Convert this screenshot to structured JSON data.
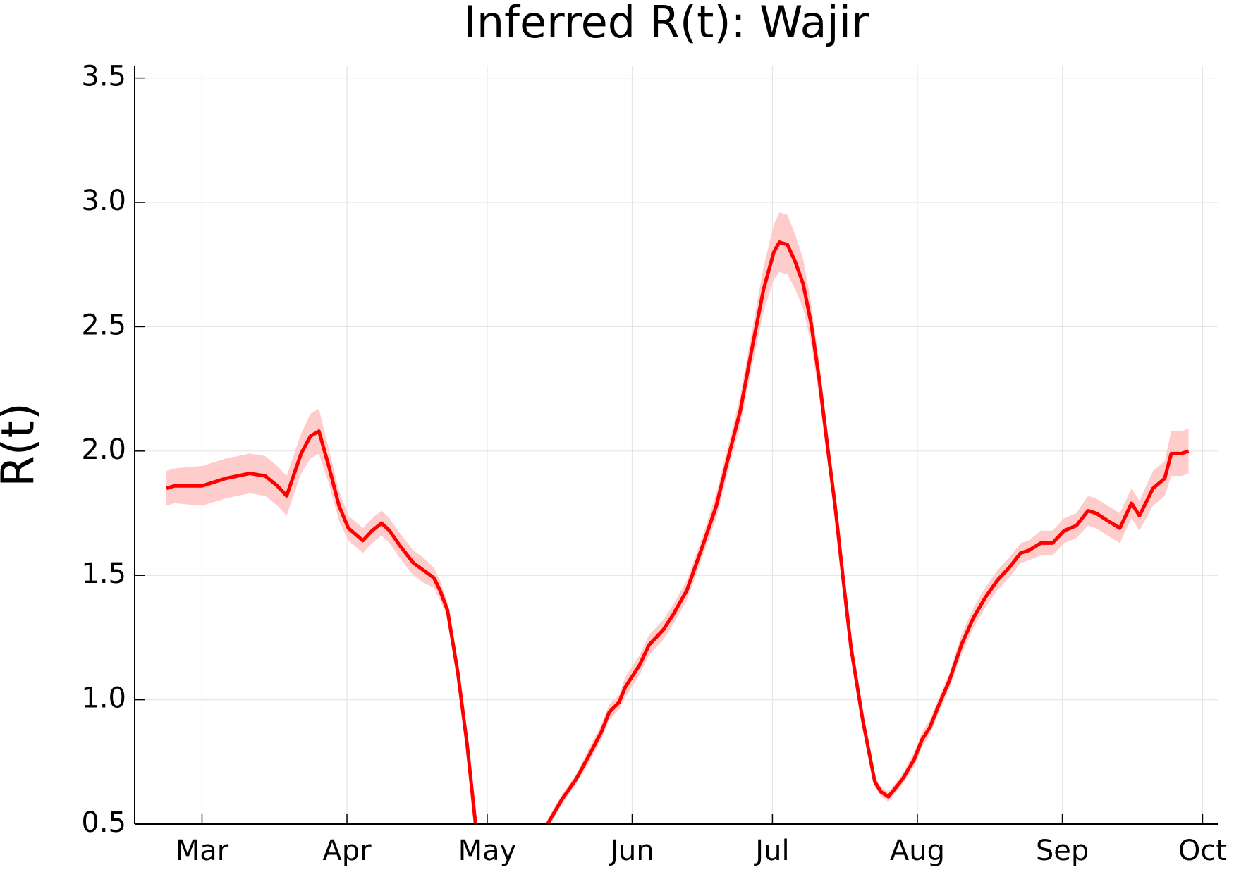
{
  "chart_data": {
    "type": "line",
    "title": "Inferred R(t): Wajir",
    "y_label": "R(t)",
    "x": [
      -7.6,
      -5.9,
      0,
      5.1,
      10.2,
      13.5,
      16.1,
      18.1,
      21.2,
      23.2,
      25.0,
      27.1,
      29.3,
      31.3,
      34.4,
      36.4,
      38.4,
      40.1,
      42.3,
      45.2,
      47.4,
      49.6,
      50.9,
      52.5,
      54.7,
      56.7,
      58.5,
      66,
      73.9,
      77.0,
      80.0,
      82.9,
      85.4,
      87.1,
      89.2,
      90.5,
      93.6,
      95.6,
      98.6,
      100.7,
      103.7,
      107.1,
      110.0,
      112.5,
      115.1,
      117.6,
      120.1,
      122.3,
      123.5,
      125.2,
      126.9,
      128.6,
      130.3,
      132.0,
      133.7,
      135.4,
      137.1,
      138.8,
      141.3,
      143.9,
      145.2,
      146.8,
      148.1,
      149.8,
      152.3,
      154.0,
      155.7,
      157.4,
      159.9,
      162.4,
      165.0,
      167.5,
      170.1,
      172.6,
      175.1,
      176.8,
      179.4,
      181.9,
      184.4,
      187.0,
      189.5,
      191.2,
      193.7,
      196.3,
      198.8,
      200.5,
      203.4,
      205.9,
      207.3,
      209.5,
      211.0
    ],
    "values": [
      1.85,
      1.86,
      1.86,
      1.89,
      1.91,
      1.9,
      1.86,
      1.82,
      1.99,
      2.06,
      2.08,
      1.94,
      1.78,
      1.69,
      1.64,
      1.68,
      1.71,
      1.68,
      1.62,
      1.55,
      1.52,
      1.49,
      1.44,
      1.36,
      1.11,
      0.82,
      0.5,
      null,
      0.5,
      0.6,
      0.68,
      0.78,
      0.87,
      0.95,
      0.99,
      1.05,
      1.14,
      1.22,
      1.28,
      1.34,
      1.44,
      1.62,
      1.78,
      1.97,
      2.16,
      2.41,
      2.65,
      2.8,
      2.84,
      2.83,
      2.76,
      2.67,
      2.51,
      2.29,
      2.03,
      1.78,
      1.49,
      1.21,
      0.92,
      0.67,
      0.63,
      0.61,
      0.64,
      0.68,
      0.76,
      0.84,
      0.89,
      0.97,
      1.08,
      1.22,
      1.33,
      1.41,
      1.48,
      1.53,
      1.59,
      1.6,
      1.63,
      1.63,
      1.68,
      1.7,
      1.76,
      1.75,
      1.72,
      1.69,
      1.79,
      1.74,
      1.85,
      1.89,
      1.99,
      1.99,
      2.0
    ],
    "color": "#ff0000",
    "band": {
      "color": "#ffcccc",
      "lower": [
        1.78,
        1.79,
        1.78,
        1.81,
        1.83,
        1.82,
        1.78,
        1.74,
        1.91,
        1.97,
        1.99,
        1.87,
        1.72,
        1.64,
        1.59,
        1.63,
        1.66,
        1.63,
        1.57,
        1.5,
        1.47,
        1.45,
        1.4,
        1.33,
        1.08,
        0.8,
        0.48,
        null,
        0.48,
        0.58,
        0.66,
        0.75,
        0.84,
        0.92,
        0.96,
        1.01,
        1.1,
        1.18,
        1.24,
        1.3,
        1.4,
        1.58,
        1.73,
        1.92,
        2.1,
        2.34,
        2.56,
        2.69,
        2.72,
        2.71,
        2.65,
        2.57,
        2.43,
        2.22,
        1.97,
        1.73,
        1.45,
        1.18,
        0.89,
        0.65,
        0.61,
        0.59,
        0.62,
        0.66,
        0.73,
        0.81,
        0.86,
        0.94,
        1.05,
        1.18,
        1.29,
        1.37,
        1.44,
        1.49,
        1.55,
        1.56,
        1.58,
        1.58,
        1.63,
        1.65,
        1.7,
        1.69,
        1.66,
        1.63,
        1.73,
        1.68,
        1.78,
        1.82,
        1.9,
        1.9,
        1.91
      ],
      "upper": [
        1.92,
        1.93,
        1.94,
        1.97,
        1.99,
        1.98,
        1.94,
        1.9,
        2.07,
        2.15,
        2.17,
        2.01,
        1.84,
        1.74,
        1.69,
        1.73,
        1.76,
        1.73,
        1.67,
        1.6,
        1.57,
        1.53,
        1.48,
        1.39,
        1.14,
        0.84,
        0.52,
        null,
        0.52,
        0.62,
        0.7,
        0.81,
        0.9,
        0.98,
        1.02,
        1.09,
        1.18,
        1.26,
        1.32,
        1.38,
        1.48,
        1.66,
        1.83,
        2.02,
        2.22,
        2.48,
        2.74,
        2.91,
        2.96,
        2.95,
        2.87,
        2.77,
        2.59,
        2.36,
        2.09,
        1.83,
        1.53,
        1.24,
        0.95,
        0.69,
        0.65,
        0.63,
        0.66,
        0.7,
        0.79,
        0.87,
        0.92,
        1.0,
        1.11,
        1.26,
        1.37,
        1.45,
        1.52,
        1.57,
        1.63,
        1.64,
        1.68,
        1.68,
        1.73,
        1.75,
        1.82,
        1.81,
        1.78,
        1.75,
        1.85,
        1.8,
        1.92,
        1.96,
        2.08,
        2.08,
        2.09
      ]
    },
    "xlim": [
      -14.4,
      217.4
    ],
    "xticks": [
      {
        "value": 0,
        "label": "Mar"
      },
      {
        "value": 31,
        "label": "Apr"
      },
      {
        "value": 61,
        "label": "May"
      },
      {
        "value": 92,
        "label": "Jun"
      },
      {
        "value": 122,
        "label": "Jul"
      },
      {
        "value": 153,
        "label": "Aug"
      },
      {
        "value": 184,
        "label": "Sep"
      },
      {
        "value": 214,
        "label": "Oct"
      }
    ],
    "ylim": [
      0.5,
      3.55
    ],
    "yticks": [
      0.5,
      {
        "value": 1,
        "label": "1.0"
      },
      1.5,
      {
        "value": 2,
        "label": "2.0"
      },
      2.5,
      {
        "value": 3,
        "label": "3.0"
      },
      3.5
    ],
    "grid": true
  }
}
